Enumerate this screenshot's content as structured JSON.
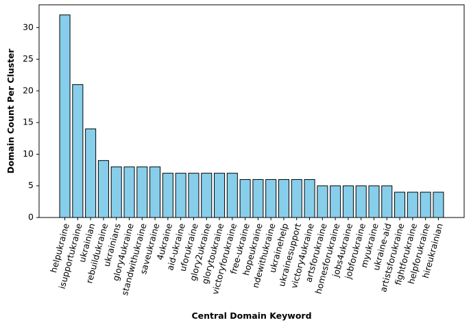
{
  "chart_data": {
    "type": "bar",
    "title": "",
    "xlabel": "Central Domain Keyword",
    "ylabel": "Domain Count Per Cluster",
    "ylim": [
      0,
      33.6
    ],
    "yticks": [
      0,
      5,
      10,
      15,
      20,
      25,
      30
    ],
    "grid": false,
    "bar_color": "#87ceeb",
    "edge_color": "#000000",
    "categories": [
      "helpukraine",
      "isupportukraine",
      "ukrainian",
      "rebuildukraine",
      "ukrainians",
      "glory4ukraine",
      "standwithukraine",
      "saveukraine",
      "4ukraine",
      "aid-ukraine",
      "uforukraine",
      "glory2ukraine",
      "glorytoukraine",
      "victoryforukraine",
      "free-ukraine",
      "hopeukraine",
      "ndewithukraine",
      "ukrainehelp",
      "ukrainesupport",
      "victory4ukraine",
      "artsforukraine",
      "homesforukraine",
      "jobs4ukraine",
      "jobforukraine",
      "myukraine",
      "ukraine-aid",
      "artistsforukraine",
      "fightforukraine",
      "helpforukraine",
      "hireukrainian"
    ],
    "values": [
      32,
      21,
      14,
      9,
      8,
      8,
      8,
      8,
      7,
      7,
      7,
      7,
      7,
      7,
      6,
      6,
      6,
      6,
      6,
      6,
      5,
      5,
      5,
      5,
      5,
      5,
      4,
      4,
      4,
      4
    ]
  }
}
